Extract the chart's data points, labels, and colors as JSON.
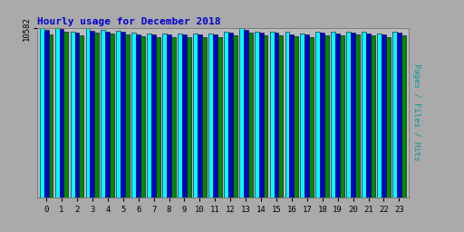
{
  "title": "Hourly usage for December 2018",
  "hours": [
    0,
    1,
    2,
    3,
    4,
    5,
    6,
    7,
    8,
    9,
    10,
    11,
    12,
    13,
    14,
    15,
    16,
    17,
    18,
    19,
    20,
    21,
    22,
    23
  ],
  "pages": [
    10582,
    10582,
    10350,
    10582,
    10480,
    10420,
    10280,
    10260,
    10260,
    10260,
    10260,
    10240,
    10350,
    10582,
    10350,
    10350,
    10350,
    10260,
    10350,
    10350,
    10380,
    10350,
    10260,
    10350
  ],
  "files": [
    10480,
    10550,
    10300,
    10420,
    10380,
    10340,
    10200,
    10200,
    10200,
    10180,
    10180,
    10180,
    10280,
    10480,
    10280,
    10280,
    10200,
    10200,
    10280,
    10260,
    10300,
    10260,
    10180,
    10300
  ],
  "hits": [
    10200,
    10350,
    10150,
    10280,
    10240,
    10200,
    10050,
    10020,
    10020,
    10000,
    10000,
    10000,
    10150,
    10280,
    10150,
    10150,
    10050,
    10020,
    10150,
    10120,
    10180,
    10120,
    10020,
    10150
  ],
  "bar_color_pages": "#00FFFF",
  "bar_color_files": "#0000CC",
  "bar_color_hits": "#008800",
  "bar_edge_color": "#000033",
  "bg_color": "#AAAAAA",
  "plot_bg_color": "#BBBBBB",
  "title_color": "#0000CC",
  "ylabel_color": "#009999",
  "tick_color": "#000000",
  "ylim_min": 0,
  "ylim_max": 10582,
  "bar_width": 0.29,
  "figsize": [
    5.12,
    2.56
  ],
  "dpi": 100
}
